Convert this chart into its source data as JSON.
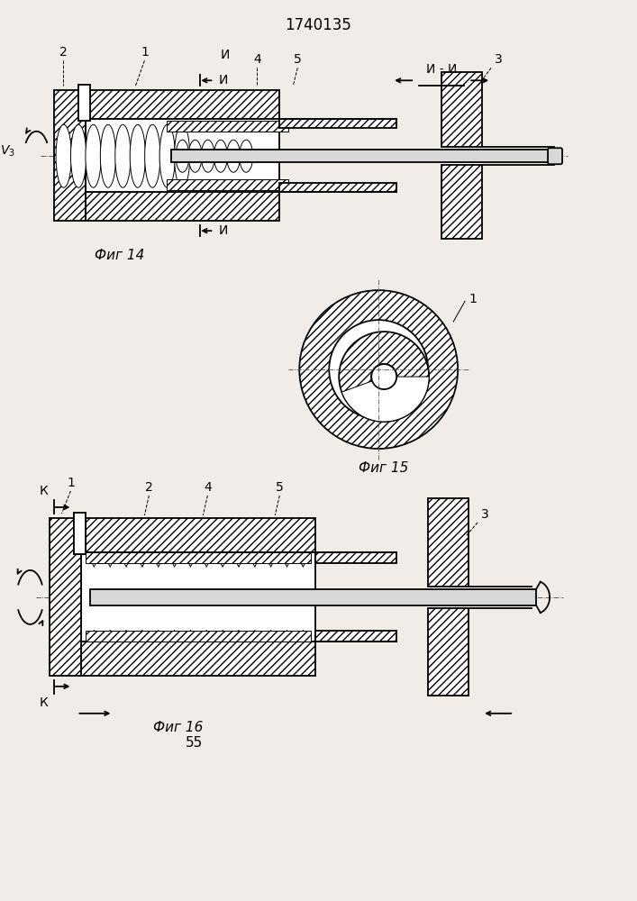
{
  "title": "1740135",
  "bg_color": "#f0ede8",
  "line_color": "#000000",
  "fig14_label": "Фиг 14",
  "fig15_label": "Фиг 15",
  "fig16_label": "Фиг 16",
  "page_number": "55",
  "hatch_pattern": "////",
  "lw_main": 1.3,
  "lw_thin": 0.7,
  "lw_dash": 0.6
}
